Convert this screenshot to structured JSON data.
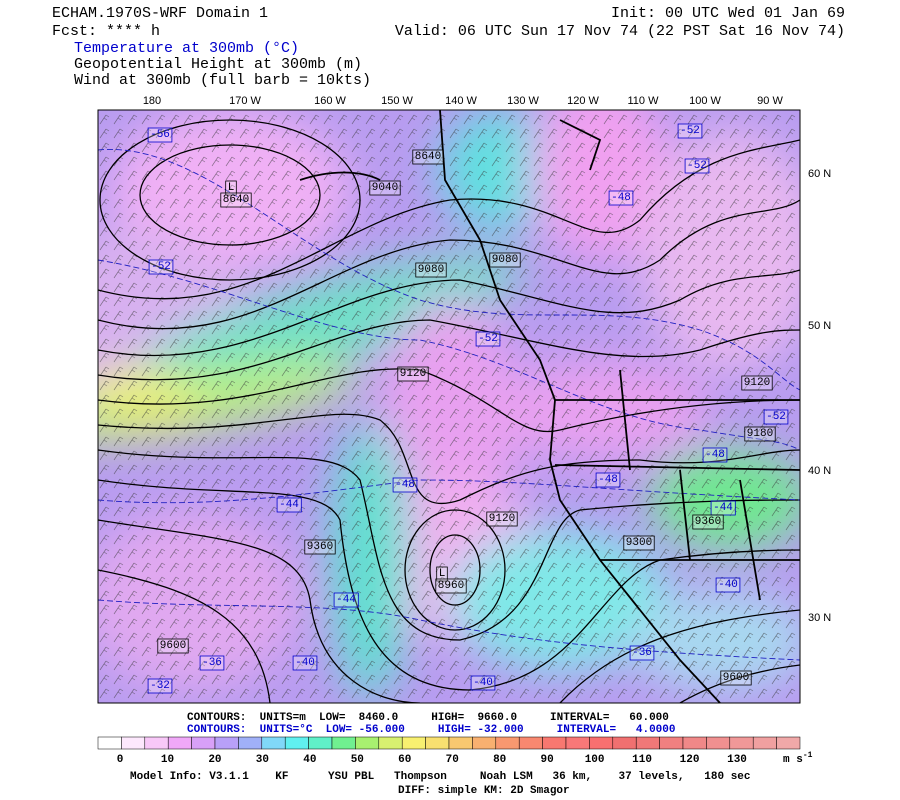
{
  "header": {
    "model": "ECHAM.1970S-WRF Domain 1",
    "init": "Init: 00 UTC Wed 01 Jan 69",
    "forecast": "Fcst: **** h",
    "valid": "Valid: 06 UTC Sun 17 Nov 74 (22 PST Sat 16 Nov 74)",
    "fields": [
      "Temperature at 300mb (°C)",
      "Geopotential Height at 300mb (m)",
      "Wind at 300mb (full barb = 10kts)"
    ]
  },
  "map": {
    "longitude_labels": [
      "180",
      "170 W",
      "160 W",
      "150 W",
      "140 W",
      "130 W",
      "120 W",
      "110 W",
      "100 W",
      "90 W"
    ],
    "latitude_labels": [
      "60 N",
      "50 N",
      "40 N",
      "30 N"
    ],
    "labels": [
      "-56",
      "L",
      "8640",
      "8640",
      "9040",
      "-52",
      "-52",
      "-48",
      "-52",
      "9080",
      "9080",
      "-52",
      "9120",
      "9120",
      "-52",
      "9180",
      "-48",
      "-48",
      "-48",
      "-44",
      "9120",
      "-44",
      "9360",
      "9360",
      "9300",
      "L",
      "8960",
      "-44",
      "-40",
      "9600",
      "-36",
      "-40",
      "-36",
      "-32",
      "-40",
      "9600"
    ]
  },
  "legend": {
    "height_contours": "CONTOURS:  UNITS=m  LOW=  8460.0     HIGH=  9660.0     INTERVAL=   60.000",
    "temperature_contours": "CONTOURS:  UNITS=°C  LOW= -56.000     HIGH= -32.000     INTERVAL=   4.0000"
  },
  "colorbar": {
    "ticks": [
      0,
      10,
      20,
      30,
      40,
      50,
      60,
      70,
      80,
      90,
      100,
      110,
      120,
      130
    ],
    "unit": "m s",
    "unit_exponent": "-1",
    "colors": [
      "#ffffff",
      "#fde8fd",
      "#f8c8f8",
      "#f0a8f8",
      "#d8a0f8",
      "#b8a0f8",
      "#a0b0f8",
      "#80d8f8",
      "#60f0f0",
      "#60f0c8",
      "#70f090",
      "#a8f070",
      "#d8f070",
      "#f8f070",
      "#f8e070",
      "#f8c870",
      "#f8b070",
      "#f89870",
      "#f88870",
      "#f87870",
      "#f87878",
      "#f87070",
      "#f07070",
      "#f07878",
      "#f08080",
      "#f08888",
      "#f09090",
      "#f09898",
      "#f0a0a0",
      "#f0a8a8"
    ]
  },
  "footer": {
    "model_info": "Model Info: V3.1.1    KF      YSU PBL   Thompson     Noah LSM   36 km,    37 levels,   180 sec",
    "diffusion": "DIFF: simple KM: 2D Smagor"
  }
}
